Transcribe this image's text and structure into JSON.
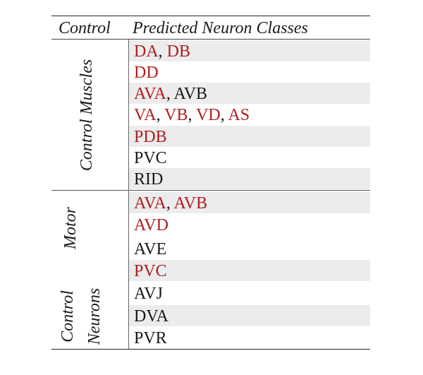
{
  "header": {
    "control": "Control",
    "classes": "Predicted Neuron Classes"
  },
  "groups": {
    "muscles": "Control Muscles",
    "motor": "Motor",
    "neurons_line1": "Control",
    "neurons_line2": "Neurons"
  },
  "rows": [
    [
      {
        "text": "DA",
        "color": "#b01e22"
      },
      {
        "text": ", ",
        "color": "#1a1a1a"
      },
      {
        "text": "DB",
        "color": "#b01e22"
      }
    ],
    [
      {
        "text": "DD",
        "color": "#b01e22"
      }
    ],
    [
      {
        "text": "AVA",
        "color": "#b01e22"
      },
      {
        "text": ", AVB",
        "color": "#1a1a1a"
      }
    ],
    [
      {
        "text": "VA",
        "color": "#b01e22"
      },
      {
        "text": ", ",
        "color": "#1a1a1a"
      },
      {
        "text": "VB",
        "color": "#b01e22"
      },
      {
        "text": ", ",
        "color": "#1a1a1a"
      },
      {
        "text": "VD",
        "color": "#b01e22"
      },
      {
        "text": ", ",
        "color": "#1a1a1a"
      },
      {
        "text": "AS",
        "color": "#b01e22"
      }
    ],
    [
      {
        "text": "PDB",
        "color": "#b01e22"
      }
    ],
    [
      {
        "text": "PVC",
        "color": "#1a1a1a"
      }
    ],
    [
      {
        "text": "RID",
        "color": "#1a1a1a"
      }
    ],
    [
      {
        "text": "AVA",
        "color": "#b01e22"
      },
      {
        "text": ", ",
        "color": "#1a1a1a"
      },
      {
        "text": "AVB",
        "color": "#b01e22"
      }
    ],
    [
      {
        "text": "AVD",
        "color": "#b01e22"
      }
    ],
    [
      {
        "text": "AVE",
        "color": "#1a1a1a"
      }
    ],
    [
      {
        "text": "PVC",
        "color": "#b01e22"
      }
    ],
    [
      {
        "text": "AVJ",
        "color": "#1a1a1a"
      }
    ],
    [
      {
        "text": "DVA",
        "color": "#1a1a1a"
      }
    ],
    [
      {
        "text": "PVR",
        "color": "#1a1a1a"
      }
    ]
  ]
}
